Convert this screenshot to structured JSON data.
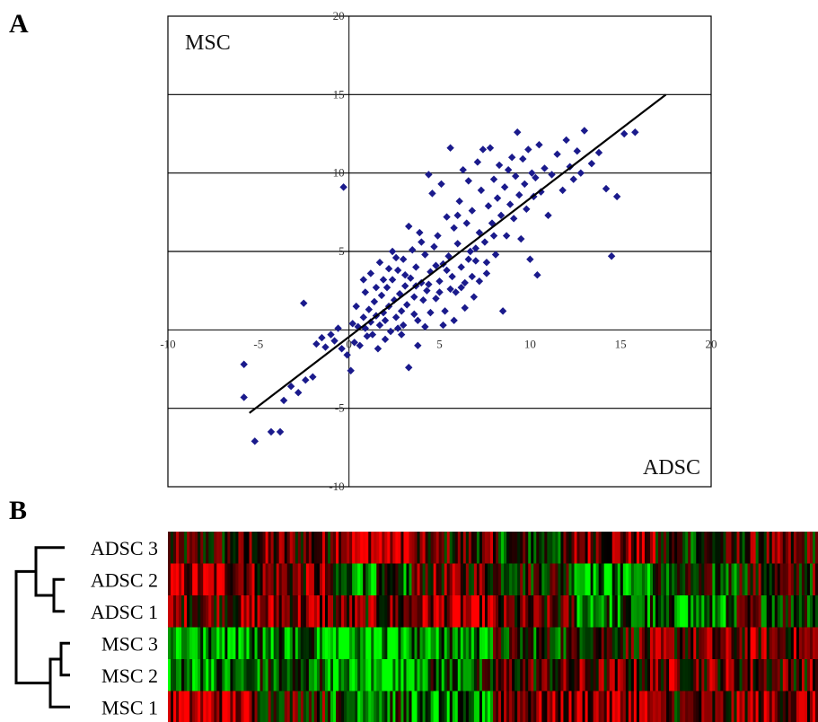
{
  "panels": {
    "a_label": "A",
    "b_label": "B"
  },
  "chart_data": [
    {
      "type": "scatter",
      "title": "",
      "xlabel": "ADSC",
      "ylabel": "MSC",
      "xlim": [
        -10,
        20
      ],
      "ylim": [
        -10,
        20
      ],
      "x_ticks": [
        "-10",
        "-5",
        "0",
        "5",
        "10",
        "15",
        "20"
      ],
      "y_ticks": [
        "-10",
        "-5",
        "5",
        "10",
        "15",
        "20"
      ],
      "grid": "horizontal",
      "point_color": "#1a1a8c",
      "trendline": {
        "from": [
          -5.5,
          -5.3
        ],
        "to": [
          17.5,
          15.0
        ]
      },
      "points": [
        [
          -5.8,
          -2.2
        ],
        [
          -5.8,
          -4.3
        ],
        [
          -5.2,
          -7.1
        ],
        [
          -4.3,
          -6.5
        ],
        [
          -3.8,
          -6.5
        ],
        [
          -3.2,
          -3.6
        ],
        [
          -3.6,
          -4.5
        ],
        [
          -2.8,
          -4.0
        ],
        [
          -2.4,
          -3.2
        ],
        [
          -2.0,
          -3.0
        ],
        [
          -2.5,
          1.7
        ],
        [
          -1.8,
          -0.9
        ],
        [
          -1.5,
          -0.5
        ],
        [
          -1.3,
          -1.1
        ],
        [
          -1.0,
          -0.3
        ],
        [
          -0.8,
          -0.7
        ],
        [
          -0.6,
          0.1
        ],
        [
          -0.4,
          -1.2
        ],
        [
          -0.3,
          9.1
        ],
        [
          -0.1,
          -1.6
        ],
        [
          0.1,
          -2.6
        ],
        [
          0.2,
          0.4
        ],
        [
          0.3,
          -0.8
        ],
        [
          0.5,
          0.2
        ],
        [
          0.6,
          -1.0
        ],
        [
          0.8,
          0.8
        ],
        [
          0.9,
          0.1
        ],
        [
          1.0,
          -0.4
        ],
        [
          1.1,
          1.3
        ],
        [
          1.2,
          0.5
        ],
        [
          1.3,
          -0.3
        ],
        [
          1.4,
          1.8
        ],
        [
          1.5,
          0.9
        ],
        [
          1.6,
          -1.2
        ],
        [
          1.7,
          0.3
        ],
        [
          1.8,
          2.2
        ],
        [
          1.9,
          1.1
        ],
        [
          2.0,
          0.6
        ],
        [
          2.1,
          2.7
        ],
        [
          2.2,
          1.5
        ],
        [
          2.3,
          -0.1
        ],
        [
          2.4,
          3.2
        ],
        [
          2.5,
          1.9
        ],
        [
          2.6,
          0.8
        ],
        [
          2.7,
          3.8
        ],
        [
          2.8,
          2.3
        ],
        [
          2.9,
          1.2
        ],
        [
          3.0,
          4.5
        ],
        [
          3.1,
          2.8
        ],
        [
          3.2,
          1.6
        ],
        [
          3.3,
          -2.4
        ],
        [
          3.4,
          3.3
        ],
        [
          3.5,
          5.1
        ],
        [
          3.6,
          2.1
        ],
        [
          3.7,
          4.0
        ],
        [
          3.8,
          0.6
        ],
        [
          3.9,
          6.2
        ],
        [
          4.0,
          3.0
        ],
        [
          4.1,
          1.9
        ],
        [
          4.2,
          4.8
        ],
        [
          4.3,
          2.5
        ],
        [
          4.4,
          9.9
        ],
        [
          4.5,
          3.7
        ],
        [
          4.6,
          8.7
        ],
        [
          4.7,
          5.3
        ],
        [
          4.8,
          2.0
        ],
        [
          4.9,
          6.0
        ],
        [
          5.0,
          3.1
        ],
        [
          5.1,
          9.3
        ],
        [
          5.2,
          4.2
        ],
        [
          5.3,
          1.2
        ],
        [
          5.4,
          7.2
        ],
        [
          5.5,
          4.7
        ],
        [
          5.6,
          11.6
        ],
        [
          5.7,
          3.4
        ],
        [
          5.8,
          6.5
        ],
        [
          5.9,
          2.4
        ],
        [
          6.0,
          5.5
        ],
        [
          6.1,
          8.2
        ],
        [
          6.2,
          4.0
        ],
        [
          6.3,
          10.2
        ],
        [
          6.4,
          3.0
        ],
        [
          6.5,
          6.8
        ],
        [
          6.6,
          9.5
        ],
        [
          6.7,
          5.0
        ],
        [
          6.8,
          7.6
        ],
        [
          6.9,
          2.1
        ],
        [
          7.0,
          4.4
        ],
        [
          7.1,
          10.7
        ],
        [
          7.2,
          6.2
        ],
        [
          7.3,
          8.9
        ],
        [
          7.4,
          11.5
        ],
        [
          7.5,
          5.6
        ],
        [
          7.6,
          3.6
        ],
        [
          7.7,
          7.9
        ],
        [
          7.8,
          11.6
        ],
        [
          7.9,
          6.8
        ],
        [
          8.0,
          9.6
        ],
        [
          8.1,
          4.8
        ],
        [
          8.2,
          8.4
        ],
        [
          8.3,
          10.5
        ],
        [
          8.4,
          7.3
        ],
        [
          8.5,
          1.2
        ],
        [
          8.6,
          9.1
        ],
        [
          8.7,
          6.0
        ],
        [
          8.8,
          10.2
        ],
        [
          8.9,
          8.0
        ],
        [
          9.0,
          11.0
        ],
        [
          9.1,
          7.1
        ],
        [
          9.2,
          9.8
        ],
        [
          9.3,
          12.6
        ],
        [
          9.4,
          8.6
        ],
        [
          9.5,
          5.8
        ],
        [
          9.6,
          10.9
        ],
        [
          9.7,
          9.3
        ],
        [
          9.8,
          7.7
        ],
        [
          9.9,
          11.5
        ],
        [
          10.0,
          4.5
        ],
        [
          10.1,
          10.0
        ],
        [
          10.2,
          8.5
        ],
        [
          10.3,
          9.7
        ],
        [
          10.4,
          3.5
        ],
        [
          10.5,
          11.8
        ],
        [
          10.6,
          8.8
        ],
        [
          10.8,
          10.3
        ],
        [
          11.0,
          7.3
        ],
        [
          11.2,
          9.9
        ],
        [
          11.5,
          11.2
        ],
        [
          11.8,
          8.9
        ],
        [
          12.0,
          12.1
        ],
        [
          12.2,
          10.4
        ],
        [
          12.4,
          9.6
        ],
        [
          12.6,
          11.4
        ],
        [
          12.8,
          10.0
        ],
        [
          13.0,
          12.7
        ],
        [
          13.4,
          10.6
        ],
        [
          13.8,
          11.3
        ],
        [
          14.2,
          9.0
        ],
        [
          14.5,
          4.7
        ],
        [
          14.8,
          8.5
        ],
        [
          15.2,
          12.5
        ],
        [
          15.8,
          12.6
        ],
        [
          1.7,
          4.3
        ],
        [
          2.4,
          5.0
        ],
        [
          2.9,
          -0.3
        ],
        [
          3.3,
          6.6
        ],
        [
          3.8,
          -1.0
        ],
        [
          4.2,
          0.2
        ],
        [
          0.8,
          3.2
        ],
        [
          1.5,
          2.7
        ],
        [
          2.2,
          3.9
        ],
        [
          2.6,
          4.6
        ],
        [
          3.0,
          0.3
        ],
        [
          3.6,
          1.0
        ],
        [
          4.0,
          5.6
        ],
        [
          4.4,
          2.9
        ],
        [
          4.8,
          4.1
        ],
        [
          5.2,
          0.3
        ],
        [
          5.6,
          2.6
        ],
        [
          6.0,
          7.3
        ],
        [
          6.4,
          1.4
        ],
        [
          6.8,
          3.4
        ],
        [
          7.2,
          3.1
        ],
        [
          0.4,
          1.5
        ],
        [
          0.9,
          2.4
        ],
        [
          1.2,
          3.6
        ],
        [
          1.9,
          3.2
        ],
        [
          2.0,
          -0.6
        ],
        [
          2.7,
          0.1
        ],
        [
          3.1,
          3.5
        ],
        [
          3.7,
          2.8
        ],
        [
          4.5,
          1.1
        ],
        [
          5.0,
          2.4
        ],
        [
          5.4,
          3.8
        ],
        [
          5.8,
          0.6
        ],
        [
          6.2,
          2.7
        ],
        [
          6.6,
          4.5
        ],
        [
          7.0,
          5.2
        ],
        [
          7.6,
          4.3
        ],
        [
          8.0,
          6.0
        ]
      ]
    },
    {
      "type": "heatmap",
      "title": "",
      "rows": [
        "ADSC 3",
        "ADSC 2",
        "ADSC 1",
        "MSC 3",
        "MSC 2",
        "MSC 1"
      ],
      "columns": 240,
      "color_scale": [
        "#00ff00",
        "#000000",
        "#ff0000"
      ],
      "dendrogram": true
    }
  ]
}
